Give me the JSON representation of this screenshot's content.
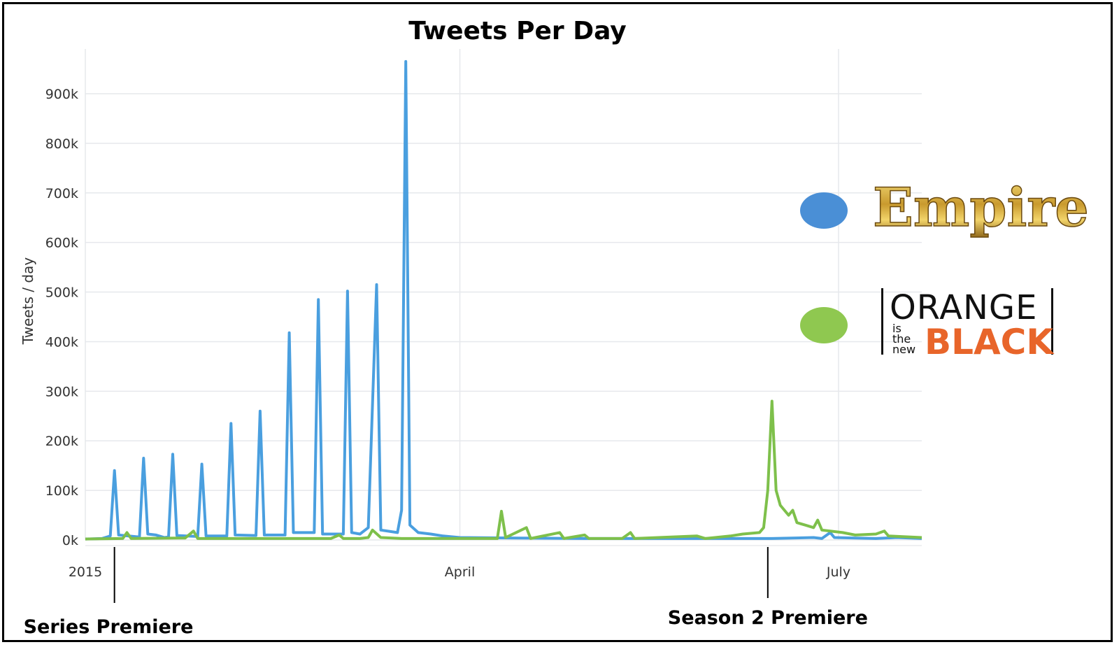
{
  "chart_data": {
    "type": "line",
    "title": "Tweets Per Day",
    "ylabel": "Tweets / day",
    "xlabel": "",
    "ylim": [
      0,
      1000000
    ],
    "yticks": [
      0,
      100000,
      200000,
      300000,
      400000,
      500000,
      600000,
      700000,
      800000,
      900000
    ],
    "ytick_labels": [
      "0k",
      "100k",
      "200k",
      "300k",
      "400k",
      "500k",
      "600k",
      "700k",
      "800k",
      "900k"
    ],
    "xlim": [
      "2015-01-01",
      "2015-07-21"
    ],
    "xticks": [
      {
        "label": "2015",
        "date": "2015-01-01"
      },
      {
        "label": "April",
        "date": "2015-04-01"
      },
      {
        "label": "July",
        "date": "2015-07-01"
      }
    ],
    "grid": true,
    "legend_position": "right",
    "series": [
      {
        "color": "#4a9fdf",
        "points": [
          [
            "2015-01-01",
            2000
          ],
          [
            "2015-01-05",
            3000
          ],
          [
            "2015-01-07",
            8000
          ],
          [
            "2015-01-08",
            140000
          ],
          [
            "2015-01-09",
            10000
          ],
          [
            "2015-01-14",
            6000
          ],
          [
            "2015-01-15",
            165000
          ],
          [
            "2015-01-16",
            12000
          ],
          [
            "2015-01-18",
            10000
          ],
          [
            "2015-01-20",
            5000
          ],
          [
            "2015-01-21",
            6000
          ],
          [
            "2015-01-22",
            173000
          ],
          [
            "2015-01-23",
            9000
          ],
          [
            "2015-01-28",
            7000
          ],
          [
            "2015-01-29",
            153000
          ],
          [
            "2015-01-30",
            8000
          ],
          [
            "2015-02-04",
            8000
          ],
          [
            "2015-02-05",
            235000
          ],
          [
            "2015-02-06",
            10000
          ],
          [
            "2015-02-11",
            9000
          ],
          [
            "2015-02-12",
            260000
          ],
          [
            "2015-02-13",
            10000
          ],
          [
            "2015-02-18",
            10000
          ],
          [
            "2015-02-19",
            418000
          ],
          [
            "2015-02-20",
            15000
          ],
          [
            "2015-02-25",
            15000
          ],
          [
            "2015-02-26",
            485000
          ],
          [
            "2015-02-27",
            12000
          ],
          [
            "2015-03-04",
            12000
          ],
          [
            "2015-03-05",
            502000
          ],
          [
            "2015-03-06",
            15000
          ],
          [
            "2015-03-08",
            12000
          ],
          [
            "2015-03-10",
            25000
          ],
          [
            "2015-03-12",
            515000
          ],
          [
            "2015-03-13",
            20000
          ],
          [
            "2015-03-17",
            15000
          ],
          [
            "2015-03-18",
            60000
          ],
          [
            "2015-03-19",
            965000
          ],
          [
            "2015-03-20",
            30000
          ],
          [
            "2015-03-22",
            15000
          ],
          [
            "2015-03-25",
            12000
          ],
          [
            "2015-03-28",
            8000
          ],
          [
            "2015-04-01",
            5000
          ],
          [
            "2015-04-15",
            4000
          ],
          [
            "2015-05-01",
            3000
          ],
          [
            "2015-06-01",
            3000
          ],
          [
            "2015-06-15",
            3000
          ],
          [
            "2015-06-25",
            5000
          ],
          [
            "2015-06-27",
            3000
          ],
          [
            "2015-06-29",
            15000
          ],
          [
            "2015-06-30",
            5000
          ],
          [
            "2015-07-05",
            4000
          ],
          [
            "2015-07-10",
            3000
          ],
          [
            "2015-07-15",
            5000
          ],
          [
            "2015-07-21",
            3000
          ]
        ]
      },
      {
        "color": "#7ec04b",
        "points": [
          [
            "2015-01-01",
            2000
          ],
          [
            "2015-01-10",
            3000
          ],
          [
            "2015-01-11",
            15000
          ],
          [
            "2015-01-12",
            3000
          ],
          [
            "2015-01-25",
            4000
          ],
          [
            "2015-01-27",
            18000
          ],
          [
            "2015-01-28",
            3000
          ],
          [
            "2015-02-25",
            3000
          ],
          [
            "2015-03-01",
            3000
          ],
          [
            "2015-03-03",
            10000
          ],
          [
            "2015-03-04",
            3000
          ],
          [
            "2015-03-08",
            3000
          ],
          [
            "2015-03-10",
            5000
          ],
          [
            "2015-03-11",
            20000
          ],
          [
            "2015-03-13",
            5000
          ],
          [
            "2015-03-18",
            3000
          ],
          [
            "2015-04-10",
            3000
          ],
          [
            "2015-04-11",
            58000
          ],
          [
            "2015-04-12",
            5000
          ],
          [
            "2015-04-17",
            25000
          ],
          [
            "2015-04-18",
            3000
          ],
          [
            "2015-04-25",
            15000
          ],
          [
            "2015-04-26",
            3000
          ],
          [
            "2015-05-01",
            10000
          ],
          [
            "2015-05-02",
            3000
          ],
          [
            "2015-05-10",
            3000
          ],
          [
            "2015-05-12",
            15000
          ],
          [
            "2015-05-13",
            3000
          ],
          [
            "2015-05-28",
            8000
          ],
          [
            "2015-05-30",
            3000
          ],
          [
            "2015-06-05",
            8000
          ],
          [
            "2015-06-08",
            12000
          ],
          [
            "2015-06-12",
            15000
          ],
          [
            "2015-06-13",
            25000
          ],
          [
            "2015-06-14",
            100000
          ],
          [
            "2015-06-15",
            280000
          ],
          [
            "2015-06-16",
            100000
          ],
          [
            "2015-06-17",
            70000
          ],
          [
            "2015-06-19",
            50000
          ],
          [
            "2015-06-20",
            60000
          ],
          [
            "2015-06-21",
            35000
          ],
          [
            "2015-06-23",
            30000
          ],
          [
            "2015-06-25",
            25000
          ],
          [
            "2015-06-26",
            40000
          ],
          [
            "2015-06-27",
            20000
          ],
          [
            "2015-07-02",
            15000
          ],
          [
            "2015-07-05",
            10000
          ],
          [
            "2015-07-10",
            12000
          ],
          [
            "2015-07-12",
            18000
          ],
          [
            "2015-07-13",
            8000
          ],
          [
            "2015-07-21",
            5000
          ]
        ]
      }
    ],
    "annotations": [
      {
        "label": "Series Premiere",
        "date": "2015-01-08"
      },
      {
        "label": "Season 2 Premiere",
        "date": "2015-06-14"
      }
    ]
  },
  "legend": {
    "empire": {
      "color": "#4a8fd6",
      "logo_text": "Empire"
    },
    "oitnb": {
      "color": "#8fc850",
      "logo_word_1": "ORANGE",
      "logo_small": [
        "is",
        "the",
        "new"
      ],
      "logo_word_2": "BLACK"
    }
  }
}
